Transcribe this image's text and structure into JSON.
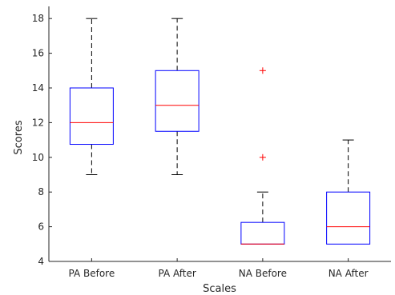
{
  "chart_data": {
    "type": "box",
    "xlabel": "Scales",
    "ylabel": "Scores",
    "ylim": [
      4,
      18.7
    ],
    "y_ticks": [
      4,
      6,
      8,
      10,
      12,
      14,
      16,
      18
    ],
    "categories": [
      "PA Before",
      "PA After",
      "NA Before",
      "NA After"
    ],
    "boxes": [
      {
        "category": "PA Before",
        "whisker_low": 9,
        "q1": 10.75,
        "median": 12,
        "q3": 14,
        "whisker_high": 18,
        "outliers": []
      },
      {
        "category": "PA After",
        "whisker_low": 9,
        "q1": 11.5,
        "median": 13,
        "q3": 15,
        "whisker_high": 18,
        "outliers": []
      },
      {
        "category": "NA Before",
        "whisker_low": 5,
        "q1": 5,
        "median": 5,
        "q3": 6.25,
        "whisker_high": 8,
        "outliers": [
          10,
          15
        ]
      },
      {
        "category": "NA After",
        "whisker_low": 5,
        "q1": 5,
        "median": 6,
        "q3": 8,
        "whisker_high": 11,
        "outliers": []
      }
    ],
    "grid": false,
    "colors": {
      "box": "#0000ff",
      "median": "#ff0000",
      "whisker": "#000000",
      "outlier": "#ff0000",
      "axis": "#262626"
    }
  }
}
